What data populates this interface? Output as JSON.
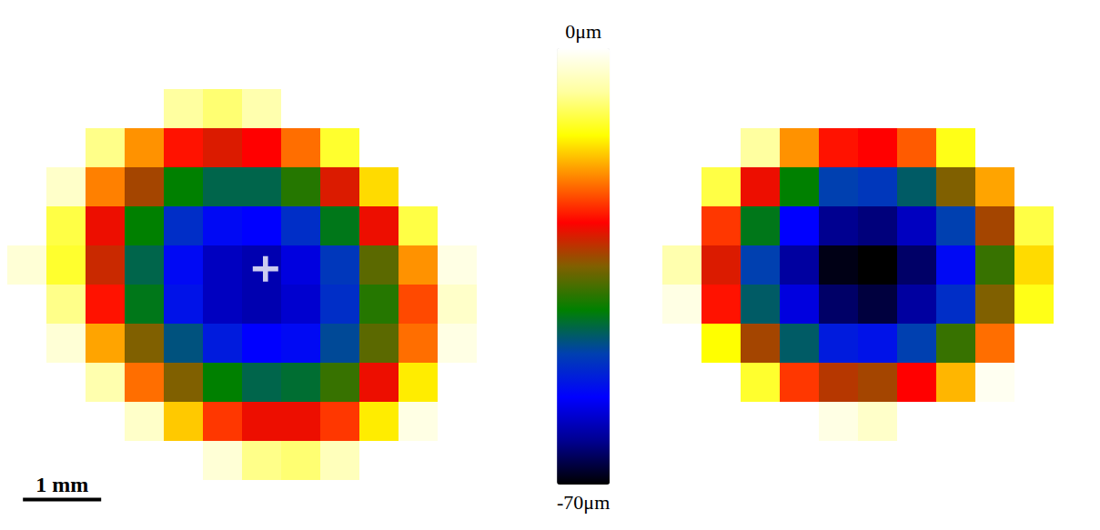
{
  "chart_data": [
    {
      "type": "heatmap",
      "xlim": [
        0,
        6
      ],
      "ylim": [
        0,
        6.5
      ],
      "cell_size": 0.5,
      "tick_labels": false,
      "grid": false,
      "depth": [
        [
          0,
          0,
          0,
          0,
          0,
          0,
          0,
          0,
          0,
          0,
          0,
          0
        ],
        [
          0,
          0,
          0,
          0,
          0,
          0,
          0,
          0,
          0,
          0,
          0,
          0
        ],
        [
          0,
          0,
          0,
          0,
          -7,
          -9,
          -6,
          0,
          0,
          0,
          0,
          0
        ],
        [
          0,
          0,
          -8,
          -20,
          -27,
          -30,
          -28,
          -22,
          -12,
          0,
          0,
          0
        ],
        [
          0,
          -4,
          -21,
          -33,
          -42,
          -45,
          -45,
          -40,
          -30,
          -16,
          0,
          0
        ],
        [
          0,
          -11,
          -29,
          -42,
          -51,
          -55,
          -56,
          -51,
          -43,
          -29,
          -11,
          0
        ],
        [
          -3,
          -12,
          -31,
          -45,
          -55,
          -60,
          -61,
          -58,
          -50,
          -37,
          -20,
          -2
        ],
        [
          0,
          -8,
          -27,
          -43,
          -54,
          -60,
          -61,
          -59,
          -51,
          -40,
          -24,
          -4
        ],
        [
          0,
          -3,
          -19,
          -35,
          -47,
          -53,
          -56,
          -55,
          -48,
          -37,
          -22,
          -2
        ],
        [
          0,
          0,
          -6,
          -22,
          -35,
          -42,
          -45,
          -44,
          -39,
          -29,
          -15,
          0
        ],
        [
          0,
          0,
          0,
          -4,
          -17,
          -25,
          -29,
          -29,
          -25,
          -15,
          -2,
          0
        ],
        [
          0,
          0,
          0,
          0,
          0,
          -3,
          -8,
          -9,
          -5,
          0,
          0,
          0
        ],
        [
          0,
          0,
          0,
          0,
          0,
          0,
          0,
          0,
          0,
          0,
          0,
          0
        ]
      ],
      "center": {
        "x": 3.3,
        "y": 3.2,
        "marker": "cross",
        "color": "#ffffff"
      },
      "scale_bar": {
        "length": 1,
        "label": "1 mm"
      },
      "colorbar": {
        "range": [
          -70,
          0
        ],
        "ticks": [
          {
            "value": 0,
            "label": "0μm"
          },
          {
            "value": -70,
            "label": "-70μm"
          }
        ]
      }
    },
    {
      "type": "heatmap",
      "xlim": [
        0,
        5.5
      ],
      "ylim": [
        0,
        6.5
      ],
      "cell_size": 0.5,
      "tick_labels": false,
      "grid": false,
      "depth": [
        [
          0,
          0,
          0,
          0,
          0,
          0,
          0,
          0,
          0,
          0,
          0
        ],
        [
          0,
          0,
          0,
          0,
          0,
          0,
          0,
          0,
          0,
          0,
          0
        ],
        [
          0,
          0,
          0,
          0,
          0,
          0,
          0,
          0,
          0,
          0,
          0
        ],
        [
          0,
          0,
          -7,
          -20,
          -27,
          -28,
          -23,
          -13,
          0,
          0,
          0
        ],
        [
          0,
          -11,
          -29,
          -42,
          -49,
          -50,
          -46,
          -35,
          -19,
          0,
          0
        ],
        [
          0,
          -25,
          -43,
          -56,
          -63,
          -64,
          -60,
          -49,
          -33,
          -11,
          0
        ],
        [
          -6,
          -30,
          -49,
          -62,
          -69,
          -70,
          -65,
          -55,
          -39,
          -16,
          0
        ],
        [
          -2,
          -27,
          -46,
          -58,
          -65,
          -67,
          -62,
          -51,
          -35,
          -13,
          0
        ],
        [
          0,
          -14,
          -33,
          -46,
          -53,
          -54,
          -49,
          -39,
          -22,
          0,
          0
        ],
        [
          0,
          0,
          -12,
          -25,
          -32,
          -33,
          -28,
          -18,
          -1,
          0,
          0
        ],
        [
          0,
          0,
          0,
          0,
          -2,
          -4,
          0,
          0,
          0,
          0,
          0
        ],
        [
          0,
          0,
          0,
          0,
          0,
          0,
          0,
          0,
          0,
          0,
          0
        ],
        [
          0,
          0,
          0,
          0,
          0,
          0,
          0,
          0,
          0,
          0,
          0
        ]
      ]
    }
  ]
}
